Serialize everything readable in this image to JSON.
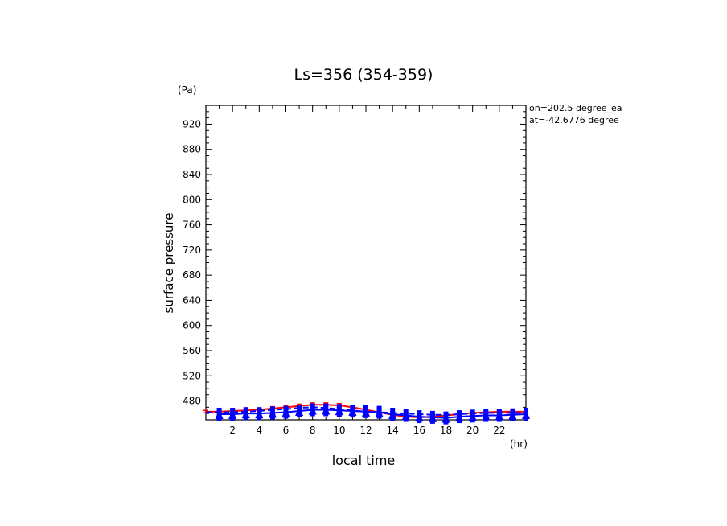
{
  "chart_data": {
    "type": "line",
    "title": "Ls=356 (354-359)",
    "xlabel": "local time",
    "ylabel": "surface pressure",
    "x_unit": "(hr)",
    "y_unit": "(Pa)",
    "xlim": [
      0,
      24
    ],
    "ylim": [
      450,
      950
    ],
    "x_ticks": [
      2,
      4,
      6,
      8,
      10,
      12,
      14,
      16,
      18,
      20,
      22
    ],
    "y_ticks": [
      480,
      520,
      560,
      600,
      640,
      680,
      720,
      760,
      800,
      840,
      880,
      920
    ],
    "annotations": [
      "lon=202.5 degree_ea",
      "lat=-42.6776 degree"
    ],
    "series": [
      {
        "name": "red-solid",
        "color": "#ff0000",
        "style": "solid-with-errorbars",
        "x": [
          0,
          1,
          2,
          3,
          4,
          5,
          6,
          7,
          8,
          9,
          10,
          11,
          12,
          13,
          14,
          15,
          16,
          17,
          18,
          19,
          20,
          21,
          22,
          23,
          24
        ],
        "y": [
          463,
          463,
          464,
          465,
          466,
          468,
          470,
          472,
          474,
          474,
          473,
          470,
          466,
          462,
          458,
          455,
          454,
          455,
          457,
          459,
          461,
          462,
          463,
          463,
          463
        ],
        "err": [
          2,
          2,
          2,
          2,
          2,
          3,
          3,
          3,
          3,
          3,
          3,
          3,
          3,
          3,
          2,
          2,
          2,
          2,
          2,
          2,
          2,
          2,
          2,
          2,
          2
        ]
      },
      {
        "name": "blue-dashed",
        "color": "#0000ff",
        "style": "dashed",
        "x": [
          0,
          1,
          2,
          3,
          4,
          5,
          6,
          7,
          8,
          9,
          10,
          11,
          12,
          13,
          14,
          15,
          16,
          17,
          18,
          19,
          20,
          21,
          22,
          23,
          24
        ],
        "y": [
          462,
          462,
          462,
          463,
          464,
          466,
          467,
          469,
          470,
          469,
          467,
          465,
          463,
          462,
          461,
          460,
          459,
          458,
          458,
          459,
          460,
          461,
          461,
          461,
          461
        ]
      },
      {
        "name": "blue-solid",
        "color": "#0000ff",
        "style": "solid-with-markers",
        "x": [
          1,
          2,
          3,
          4,
          5,
          6,
          7,
          8,
          9,
          10,
          11,
          12,
          13,
          14,
          15,
          16,
          17,
          18,
          19,
          20,
          21,
          22,
          23,
          24
        ],
        "y": [
          459,
          459,
          460,
          460,
          461,
          462,
          464,
          466,
          466,
          465,
          464,
          463,
          462,
          459,
          457,
          455,
          454,
          453,
          455,
          456,
          457,
          457,
          458,
          459
        ],
        "err": [
          4,
          4,
          4,
          4,
          4,
          4,
          5,
          5,
          5,
          5,
          4,
          4,
          4,
          4,
          4,
          5,
          4,
          4,
          4,
          4,
          4,
          4,
          4,
          4
        ]
      }
    ]
  }
}
